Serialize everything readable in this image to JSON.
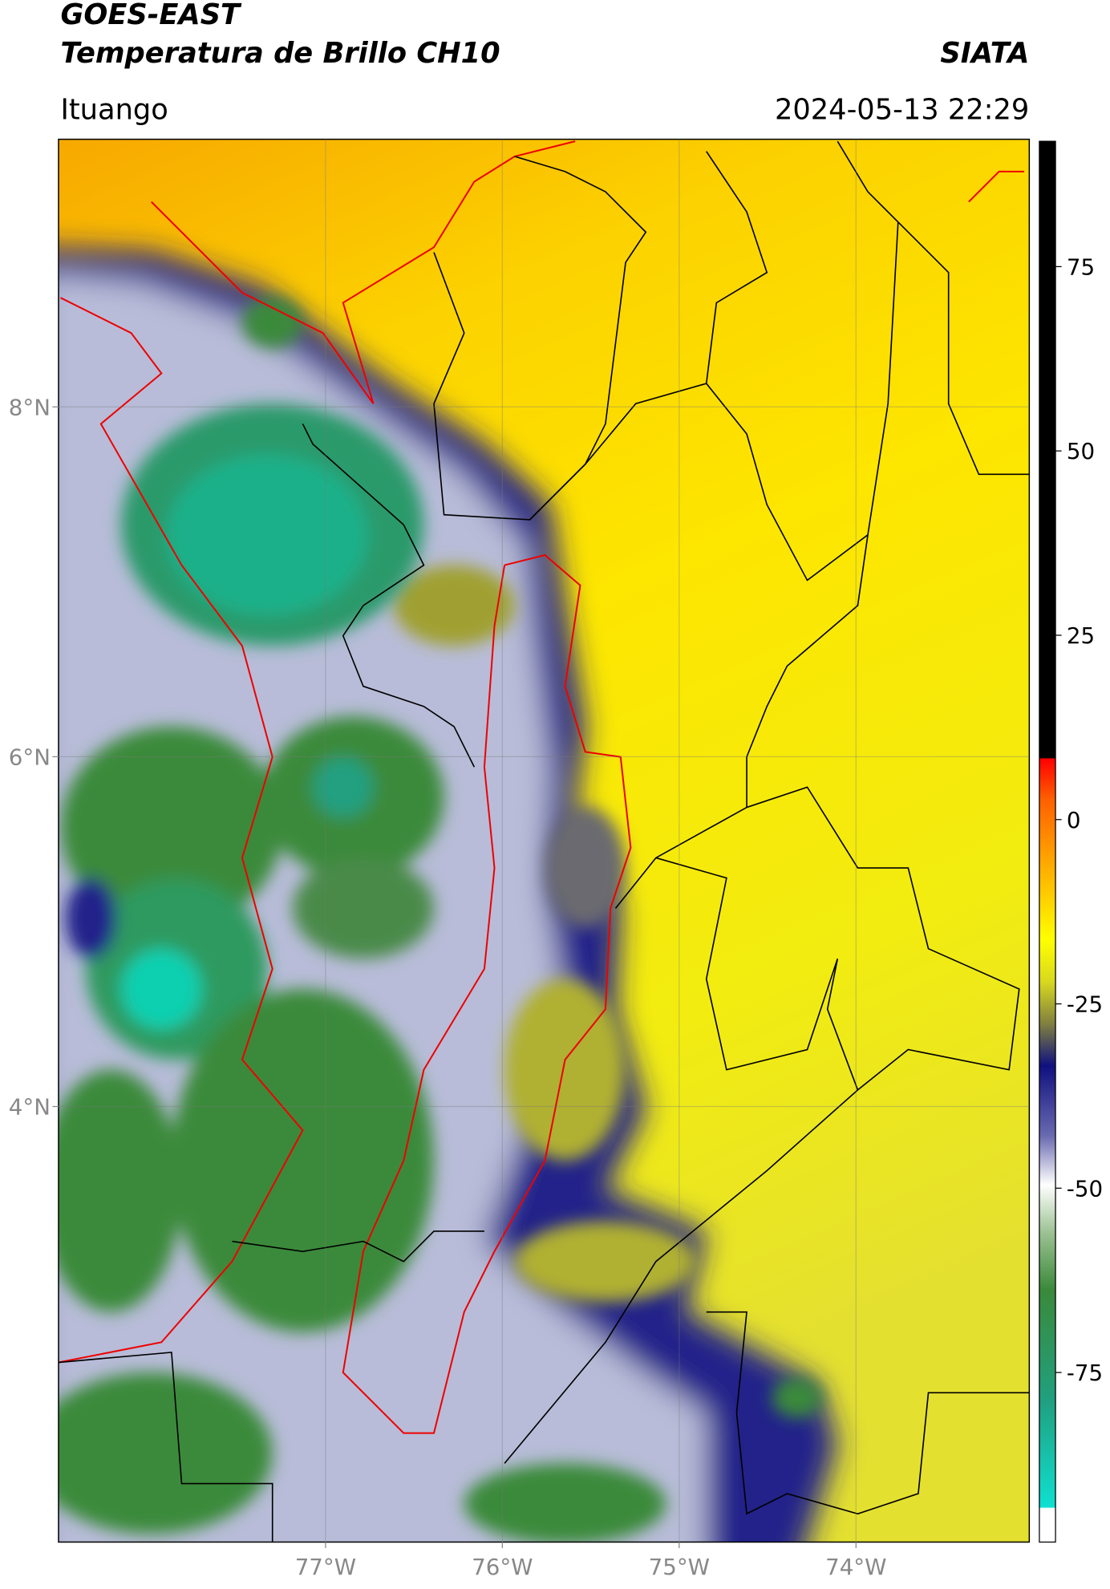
{
  "header": {
    "satellite": "GOES-EAST",
    "product": "Temperatura de Brillo CH10",
    "source": "SIATA",
    "location": "Ituango",
    "datetime": "2024-05-13 22:29"
  },
  "map": {
    "lon_range": [
      -78.51,
      -73.02
    ],
    "lat_range": [
      1.51,
      9.53
    ],
    "lon_ticks": [
      {
        "value": -77,
        "label": "77°W"
      },
      {
        "value": -76,
        "label": "76°W"
      },
      {
        "value": -75,
        "label": "75°W"
      },
      {
        "value": -74,
        "label": "74°W"
      }
    ],
    "lat_ticks": [
      {
        "value": 8,
        "label": "8°N"
      },
      {
        "value": 6,
        "label": "6°N"
      },
      {
        "value": 4,
        "label": "4°N"
      }
    ]
  },
  "colorbar": {
    "range": [
      -98,
      92
    ],
    "ticks": [
      75,
      50,
      25,
      0,
      -25,
      -50,
      -75
    ]
  }
}
